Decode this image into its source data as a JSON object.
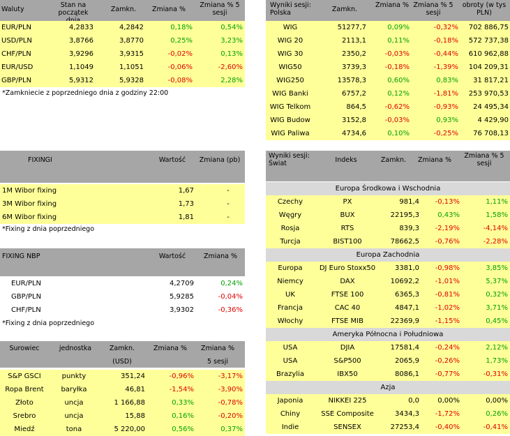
{
  "currencies": {
    "headers": [
      "Waluty",
      "Stan na początek dnia",
      "Zamkn.",
      "Zmiana %",
      "Zmiana % 5 sesji"
    ],
    "rows": [
      {
        "name": "EUR/PLN",
        "start": "4,2833",
        "close": "4,2842",
        "chg": "0,18%",
        "chg5": "0,54%"
      },
      {
        "name": "USD/PLN",
        "start": "3,8766",
        "close": "3,8770",
        "chg": "0,25%",
        "chg5": "3,23%"
      },
      {
        "name": "CHF/PLN",
        "start": "3,9296",
        "close": "3,9315",
        "chg": "-0,02%",
        "chg5": "0,13%"
      },
      {
        "name": "EUR/USD",
        "start": "1,1049",
        "close": "1,1051",
        "chg": "-0,06%",
        "chg5": "-2,60%"
      },
      {
        "name": "GBP/PLN",
        "start": "5,9312",
        "close": "5,9328",
        "chg": "-0,08%",
        "chg5": "2,28%"
      }
    ],
    "note": "*Zamkniecie z poprzedniego dnia z godziny 22:00"
  },
  "poland": {
    "headers": [
      "Wyniki sesji: Polska",
      "Zamkn.",
      "Zmiana %",
      "Zmiana % 5 sesji",
      "obroty (w tys PLN)"
    ],
    "rows": [
      {
        "name": "WIG",
        "close": "51277,7",
        "chg": "0,09%",
        "chg5": "-0,32%",
        "turnover": "702 886,75"
      },
      {
        "name": "WIG 20",
        "close": "2113,1",
        "chg": "0,11%",
        "chg5": "-0,18%",
        "turnover": "572 737,38"
      },
      {
        "name": "WIG 30",
        "close": "2350,2",
        "chg": "-0,03%",
        "chg5": "-0,44%",
        "turnover": "610 962,88"
      },
      {
        "name": "WIG50",
        "close": "3739,3",
        "chg": "-0,18%",
        "chg5": "-1,39%",
        "turnover": "104 209,31"
      },
      {
        "name": "WIG250",
        "close": "13578,3",
        "chg": "0,60%",
        "chg5": "0,83%",
        "turnover": "31 817,21"
      },
      {
        "name": "WIG Banki",
        "close": "6757,2",
        "chg": "0,12%",
        "chg5": "-1,81%",
        "turnover": "253 970,53"
      },
      {
        "name": "WIG Telkom",
        "close": "864,5",
        "chg": "-0,62%",
        "chg5": "-0,93%",
        "turnover": "24 495,34"
      },
      {
        "name": "WIG Budow",
        "close": "3152,8",
        "chg": "-0,03%",
        "chg5": "0,93%",
        "turnover": "4 429,90"
      },
      {
        "name": "WIG Paliwa",
        "close": "4734,6",
        "chg": "0,10%",
        "chg5": "-0,25%",
        "turnover": "76 708,13"
      }
    ]
  },
  "fixingi": {
    "headers": [
      "FIXINGI",
      "Wartość",
      "Zmiana (pb)"
    ],
    "rows": [
      {
        "name": "1M Wibor fixing",
        "value": "1,67",
        "chg": "-"
      },
      {
        "name": "3M Wibor fixing",
        "value": "1,73",
        "chg": "-"
      },
      {
        "name": "6M Wibor fixing",
        "value": "1,81",
        "chg": "-"
      }
    ],
    "note": "*Fixing z dnia poprzedniego"
  },
  "nbp": {
    "headers": [
      "FIXING NBP",
      "Wartość",
      "Zmiana %"
    ],
    "rows": [
      {
        "name": "EUR/PLN",
        "value": "4,2709",
        "chg": "0,24%"
      },
      {
        "name": "GBP/PLN",
        "value": "5,9285",
        "chg": "-0,04%"
      },
      {
        "name": "CHF/PLN",
        "value": "3,9302",
        "chg": "-0,36%"
      }
    ],
    "note": "*Fixing z dnia poprzedniego"
  },
  "commodities": {
    "headers": [
      "Surowiec",
      "jednostka",
      "Zamkn.",
      "Zmiana %",
      "Zmiana %"
    ],
    "subheaders": [
      "(USD)",
      "5 sesji"
    ],
    "rows": [
      {
        "name": "S&P GSCI",
        "unit": "punkty",
        "close": "351,24",
        "chg": "-0,96%",
        "chg5": "-3,17%"
      },
      {
        "name": "Ropa Brent",
        "unit": "baryłka",
        "close": "46,81",
        "chg": "-1,54%",
        "chg5": "-3,90%"
      },
      {
        "name": "Złoto",
        "unit": "uncja",
        "close": "1 166,88",
        "chg": "0,33%",
        "chg5": "-0,78%"
      },
      {
        "name": "Srebro",
        "unit": "uncja",
        "close": "15,88",
        "chg": "0,16%",
        "chg5": "-0,20%"
      },
      {
        "name": "Miedź",
        "unit": "tona",
        "close": "5 220,00",
        "chg": "0,56%",
        "chg5": "0,37%"
      }
    ]
  },
  "world": {
    "headers": [
      "Wyniki sesji: Świat",
      "Indeks",
      "Zamkn.",
      "Zmiana %",
      "Zmiana % 5 sesji"
    ],
    "groups": [
      {
        "title": "Europa Środkowa i Wschodnia",
        "rows": [
          {
            "country": "Czechy",
            "index": "PX",
            "close": "981,4",
            "chg": "-0,13%",
            "chg5": "1,11%"
          },
          {
            "country": "Węgry",
            "index": "BUX",
            "close": "22195,3",
            "chg": "0,43%",
            "chg5": "1,58%"
          },
          {
            "country": "Rosja",
            "index": "RTS",
            "close": "839,3",
            "chg": "-2,19%",
            "chg5": "-4,14%"
          },
          {
            "country": "Turcja",
            "index": "BIST100",
            "close": "78662,5",
            "chg": "-0,76%",
            "chg5": "-2,28%"
          }
        ]
      },
      {
        "title": "Europa Zachodnia",
        "rows": [
          {
            "country": "Europa",
            "index": "DJ Euro Stoxx50",
            "close": "3381,0",
            "chg": "-0,98%",
            "chg5": "3,85%"
          },
          {
            "country": "Niemcy",
            "index": "DAX",
            "close": "10692,2",
            "chg": "-1,01%",
            "chg5": "5,37%"
          },
          {
            "country": "UK",
            "index": "FTSE 100",
            "close": "6365,3",
            "chg": "-0,81%",
            "chg5": "0,32%"
          },
          {
            "country": "Francja",
            "index": "CAC 40",
            "close": "4847,1",
            "chg": "-1,02%",
            "chg5": "3,71%"
          },
          {
            "country": "Włochy",
            "index": "FTSE MIB",
            "close": "22369,9",
            "chg": "-1,15%",
            "chg5": "0,45%"
          }
        ]
      },
      {
        "title": "Ameryka Północna i Południowa",
        "rows": [
          {
            "country": "USA",
            "index": "DJIA",
            "close": "17581,4",
            "chg": "-0,24%",
            "chg5": "2,12%"
          },
          {
            "country": "USA",
            "index": "S&P500",
            "close": "2065,9",
            "chg": "-0,26%",
            "chg5": "1,73%"
          },
          {
            "country": "Brazylia",
            "index": "IBX50",
            "close": "8086,1",
            "chg": "-0,77%",
            "chg5": "-0,31%"
          }
        ]
      },
      {
        "title": "Azja",
        "rows": [
          {
            "country": "Japonia",
            "index": "NIKKEI 225",
            "close": "0,0",
            "chg": "0,00%",
            "chg5": "0,00%"
          },
          {
            "country": "Chiny",
            "index": "SSE Composite",
            "close": "3434,3",
            "chg": "-1,72%",
            "chg5": "0,26%"
          },
          {
            "country": "Indie",
            "index": "SENSEX",
            "close": "27253,4",
            "chg": "-0,40%",
            "chg5": "-0,41%"
          }
        ]
      }
    ]
  }
}
